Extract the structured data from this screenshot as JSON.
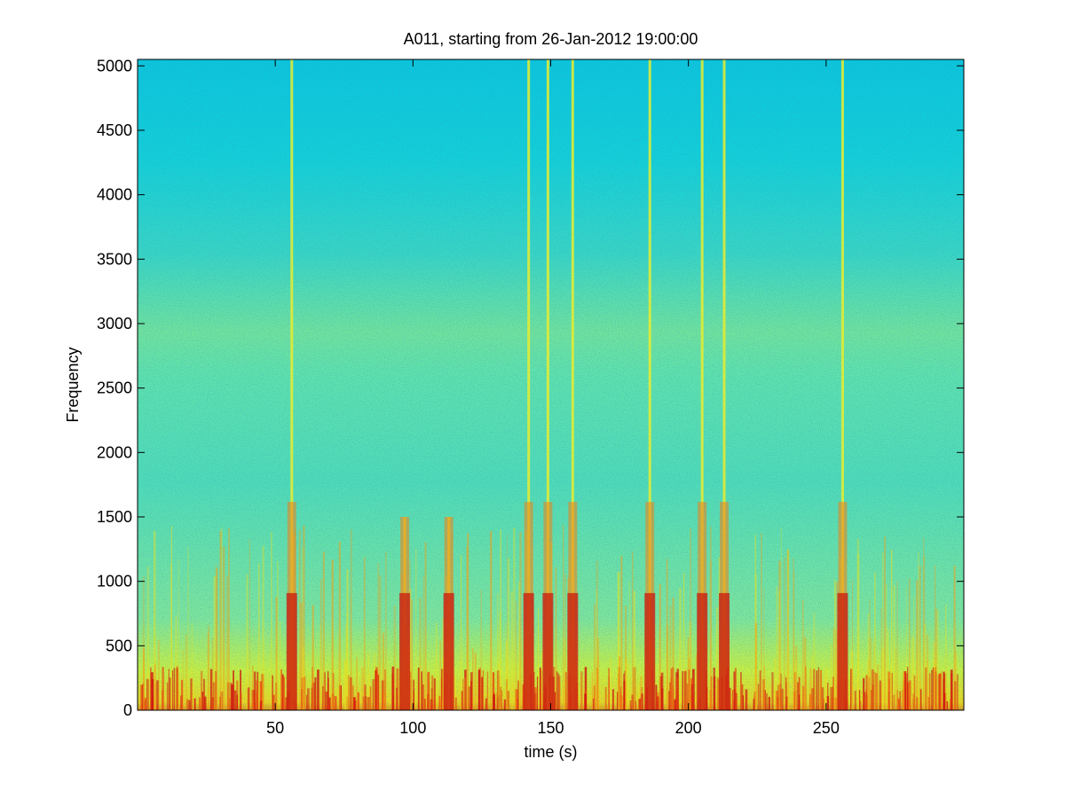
{
  "chart_data": {
    "type": "heatmap",
    "title": "A011, starting from 26-Jan-2012 19:00:00",
    "xlabel": "time (s)",
    "ylabel": "Frequency",
    "xlim": [
      0,
      300
    ],
    "ylim": [
      0,
      5050
    ],
    "x_ticks": [
      50,
      100,
      150,
      200,
      250
    ],
    "y_ticks": [
      0,
      500,
      1000,
      1500,
      2000,
      2500,
      3000,
      3500,
      4000,
      4500,
      5000
    ],
    "colormap": "jet",
    "grid": false,
    "colors": {
      "low": "#00ccdd",
      "mid": "#a6f05a",
      "high": "#cc1010"
    },
    "events": [
      {
        "time": 56,
        "extent_hz": 5050
      },
      {
        "time": 97,
        "extent_hz": 1500
      },
      {
        "time": 113,
        "extent_hz": 1500
      },
      {
        "time": 142,
        "extent_hz": 5050
      },
      {
        "time": 149,
        "extent_hz": 5050
      },
      {
        "time": 158,
        "extent_hz": 5050
      },
      {
        "time": 186,
        "extent_hz": 5050
      },
      {
        "time": 205,
        "extent_hz": 5050
      },
      {
        "time": 213,
        "extent_hz": 5050
      },
      {
        "time": 256,
        "extent_hz": 5050
      }
    ]
  }
}
